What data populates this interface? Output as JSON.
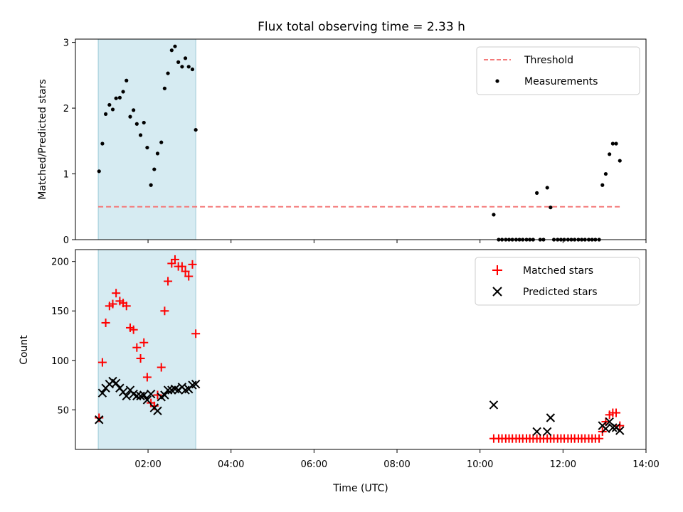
{
  "chart_data": {
    "title": "Flux total observing time = 2.33 h",
    "xlabel": "Time (UTC)",
    "x_unit": "hours UTC",
    "xlim": [
      0.25,
      14.0
    ],
    "xticks": [
      2,
      4,
      6,
      8,
      10,
      12,
      14
    ],
    "xtick_labels": [
      "02:00",
      "04:00",
      "06:00",
      "08:00",
      "10:00",
      "12:00",
      "14:00"
    ],
    "highlight_span": {
      "x_start": 0.8,
      "x_end": 3.15,
      "color": "#add8e6"
    },
    "panels": [
      {
        "type": "scatter",
        "ylabel": "Matched/Predicted stars",
        "ylim": [
          0,
          3.05
        ],
        "yticks": [
          0,
          1,
          2,
          3
        ],
        "legend": {
          "placement": "upper right",
          "entries": [
            "Threshold",
            "Measurements"
          ]
        },
        "threshold": {
          "name": "Threshold",
          "value": 0.5,
          "x_range": [
            0.8,
            13.4
          ],
          "color": "#f47a7a",
          "style": "dashed"
        },
        "series": [
          {
            "name": "Measurements",
            "color": "#000000",
            "marker": "dot",
            "points": [
              [
                0.82,
                1.04
              ],
              [
                0.9,
                1.46
              ],
              [
                0.98,
                1.91
              ],
              [
                1.07,
                2.05
              ],
              [
                1.15,
                1.98
              ],
              [
                1.23,
                2.15
              ],
              [
                1.32,
                2.16
              ],
              [
                1.4,
                2.25
              ],
              [
                1.48,
                2.42
              ],
              [
                1.57,
                1.87
              ],
              [
                1.65,
                1.97
              ],
              [
                1.73,
                1.76
              ],
              [
                1.82,
                1.59
              ],
              [
                1.9,
                1.78
              ],
              [
                1.98,
                1.4
              ],
              [
                2.07,
                0.83
              ],
              [
                2.15,
                1.07
              ],
              [
                2.23,
                1.31
              ],
              [
                2.32,
                1.48
              ],
              [
                2.4,
                2.3
              ],
              [
                2.48,
                2.53
              ],
              [
                2.57,
                2.88
              ],
              [
                2.65,
                2.94
              ],
              [
                2.73,
                2.7
              ],
              [
                2.82,
                2.63
              ],
              [
                2.9,
                2.76
              ],
              [
                2.98,
                2.63
              ],
              [
                3.07,
                2.59
              ],
              [
                3.15,
                1.67
              ],
              [
                10.33,
                0.38
              ],
              [
                10.45,
                0.0
              ],
              [
                10.53,
                0.0
              ],
              [
                10.62,
                0.0
              ],
              [
                10.7,
                0.0
              ],
              [
                10.78,
                0.0
              ],
              [
                10.87,
                0.0
              ],
              [
                10.95,
                0.0
              ],
              [
                11.03,
                0.0
              ],
              [
                11.12,
                0.0
              ],
              [
                11.2,
                0.0
              ],
              [
                11.28,
                0.0
              ],
              [
                11.37,
                0.71
              ],
              [
                11.45,
                0.0
              ],
              [
                11.53,
                0.0
              ],
              [
                11.62,
                0.79
              ],
              [
                11.7,
                0.49
              ],
              [
                11.78,
                0.0
              ],
              [
                11.87,
                0.0
              ],
              [
                11.95,
                0.0
              ],
              [
                12.03,
                0.0
              ],
              [
                12.12,
                0.0
              ],
              [
                12.2,
                0.0
              ],
              [
                12.28,
                0.0
              ],
              [
                12.37,
                0.0
              ],
              [
                12.45,
                0.0
              ],
              [
                12.53,
                0.0
              ],
              [
                12.62,
                0.0
              ],
              [
                12.7,
                0.0
              ],
              [
                12.78,
                0.0
              ],
              [
                12.87,
                0.0
              ],
              [
                12.95,
                0.83
              ],
              [
                13.03,
                1.0
              ],
              [
                13.12,
                1.3
              ],
              [
                13.2,
                1.46
              ],
              [
                13.28,
                1.46
              ],
              [
                13.37,
                1.2
              ]
            ]
          }
        ]
      },
      {
        "type": "scatter",
        "ylabel": "Count",
        "ylim": [
          10,
          212
        ],
        "yticks": [
          50,
          100,
          150,
          200
        ],
        "legend": {
          "placement": "upper right",
          "entries": [
            "Matched stars",
            "Predicted stars"
          ]
        },
        "series": [
          {
            "name": "Matched stars",
            "color": "#ff0000",
            "marker": "plus",
            "points": [
              [
                0.82,
                42
              ],
              [
                0.9,
                98
              ],
              [
                0.98,
                138
              ],
              [
                1.07,
                155
              ],
              [
                1.15,
                157
              ],
              [
                1.23,
                168
              ],
              [
                1.32,
                160
              ],
              [
                1.4,
                158
              ],
              [
                1.48,
                155
              ],
              [
                1.57,
                133
              ],
              [
                1.65,
                131
              ],
              [
                1.73,
                113
              ],
              [
                1.82,
                102
              ],
              [
                1.9,
                118
              ],
              [
                1.98,
                83
              ],
              [
                2.07,
                57
              ],
              [
                2.15,
                54
              ],
              [
                2.23,
                65
              ],
              [
                2.32,
                93
              ],
              [
                2.4,
                150
              ],
              [
                2.48,
                180
              ],
              [
                2.57,
                198
              ],
              [
                2.65,
                202
              ],
              [
                2.73,
                195
              ],
              [
                2.82,
                195
              ],
              [
                2.9,
                190
              ],
              [
                2.98,
                185
              ],
              [
                3.07,
                197
              ],
              [
                3.15,
                127
              ],
              [
                10.33,
                21
              ],
              [
                10.45,
                21
              ],
              [
                10.53,
                21
              ],
              [
                10.62,
                21
              ],
              [
                10.7,
                21
              ],
              [
                10.78,
                21
              ],
              [
                10.87,
                21
              ],
              [
                10.95,
                21
              ],
              [
                11.03,
                21
              ],
              [
                11.12,
                21
              ],
              [
                11.2,
                21
              ],
              [
                11.28,
                21
              ],
              [
                11.37,
                21
              ],
              [
                11.45,
                21
              ],
              [
                11.53,
                21
              ],
              [
                11.62,
                21
              ],
              [
                11.7,
                21
              ],
              [
                11.78,
                21
              ],
              [
                11.87,
                21
              ],
              [
                11.95,
                21
              ],
              [
                12.03,
                21
              ],
              [
                12.12,
                21
              ],
              [
                12.2,
                21
              ],
              [
                12.28,
                21
              ],
              [
                12.37,
                21
              ],
              [
                12.45,
                21
              ],
              [
                12.53,
                21
              ],
              [
                12.62,
                21
              ],
              [
                12.7,
                21
              ],
              [
                12.78,
                21
              ],
              [
                12.87,
                21
              ],
              [
                12.95,
                28
              ],
              [
                13.03,
                38
              ],
              [
                13.12,
                45
              ],
              [
                13.2,
                47
              ],
              [
                13.28,
                47
              ],
              [
                13.37,
                34
              ]
            ]
          },
          {
            "name": "Predicted stars",
            "color": "#000000",
            "marker": "x",
            "points": [
              [
                0.82,
                40
              ],
              [
                0.9,
                67
              ],
              [
                0.98,
                72
              ],
              [
                1.07,
                76
              ],
              [
                1.15,
                79
              ],
              [
                1.23,
                77
              ],
              [
                1.32,
                72
              ],
              [
                1.4,
                68
              ],
              [
                1.48,
                64
              ],
              [
                1.57,
                70
              ],
              [
                1.65,
                66
              ],
              [
                1.73,
                64
              ],
              [
                1.82,
                64
              ],
              [
                1.9,
                65
              ],
              [
                1.98,
                60
              ],
              [
                2.07,
                66
              ],
              [
                2.15,
                52
              ],
              [
                2.23,
                49
              ],
              [
                2.32,
                63
              ],
              [
                2.4,
                65
              ],
              [
                2.48,
                70
              ],
              [
                2.57,
                70
              ],
              [
                2.65,
                71
              ],
              [
                2.73,
                70
              ],
              [
                2.82,
                73
              ],
              [
                2.9,
                70
              ],
              [
                2.98,
                71
              ],
              [
                3.07,
                75
              ],
              [
                3.15,
                76
              ],
              [
                10.33,
                55
              ],
              [
                11.37,
                28
              ],
              [
                11.62,
                28
              ],
              [
                11.7,
                42
              ],
              [
                12.95,
                34
              ],
              [
                13.03,
                31
              ],
              [
                13.12,
                38
              ],
              [
                13.2,
                32
              ],
              [
                13.28,
                32
              ],
              [
                13.37,
                29
              ]
            ]
          }
        ]
      }
    ]
  }
}
